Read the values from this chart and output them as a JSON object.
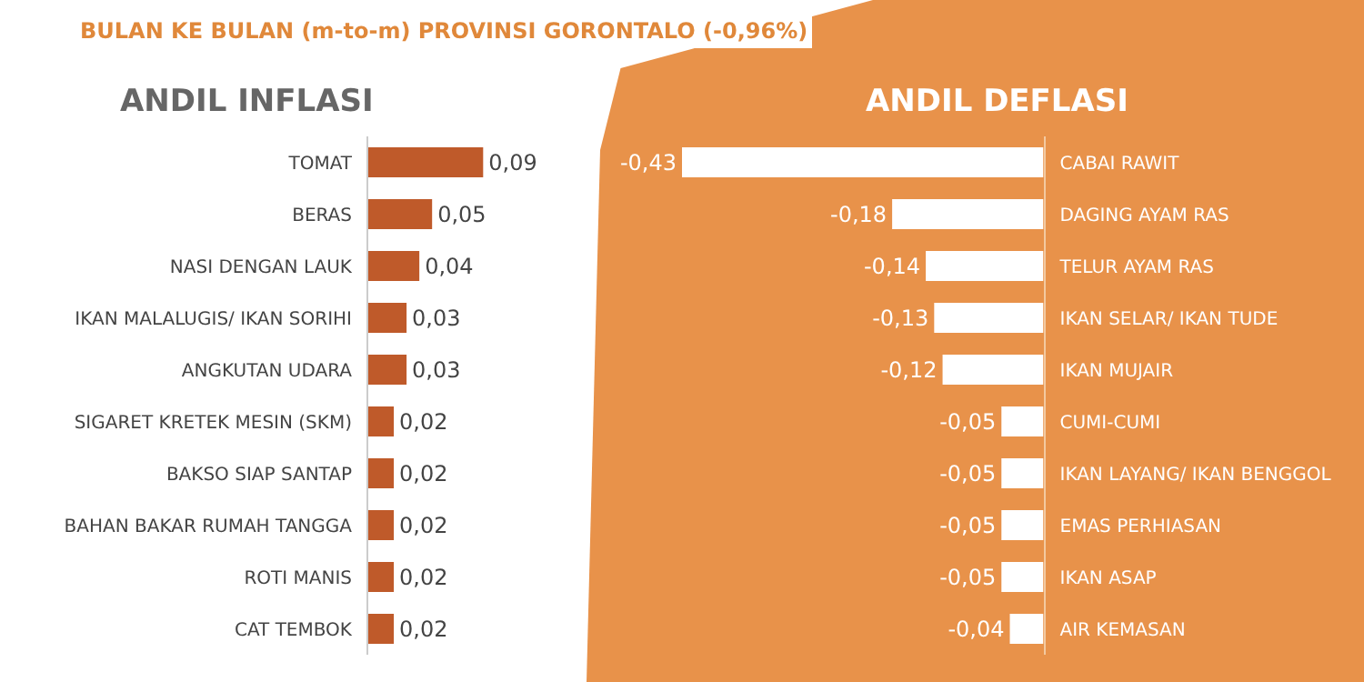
{
  "chart_data": [
    {
      "type": "bar",
      "orientation": "horizontal",
      "title": "ANDIL INFLASI",
      "annotations": [
        "BULAN KE BULAN (m-to-m) PROVINSI GORONTALO (-0,96%)"
      ],
      "color": "#bf5a2a",
      "categories": [
        "TOMAT",
        "BERAS",
        "NASI DENGAN LAUK",
        "IKAN MALALUGIS/ IKAN SORIHI",
        "ANGKUTAN UDARA",
        "SIGARET KRETEK MESIN (SKM)",
        "BAKSO SIAP SANTAP",
        "BAHAN BAKAR RUMAH TANGGA",
        "ROTI MANIS",
        "CAT TEMBOK"
      ],
      "values": [
        0.09,
        0.05,
        0.04,
        0.03,
        0.03,
        0.02,
        0.02,
        0.02,
        0.02,
        0.02
      ],
      "value_labels": [
        "0,09",
        "0,05",
        "0,04",
        "0,03",
        "0,03",
        "0,02",
        "0,02",
        "0,02",
        "0,02",
        "0,02"
      ]
    },
    {
      "type": "bar",
      "orientation": "horizontal",
      "title": "ANDIL DEFLASI",
      "color": "#ffffff",
      "categories": [
        "CABAI RAWIT",
        "DAGING AYAM RAS",
        "TELUR AYAM RAS",
        "IKAN SELAR/ IKAN TUDE",
        "IKAN MUJAIR",
        "CUMI-CUMI",
        "IKAN LAYANG/ IKAN BENGGOL",
        "EMAS PERHIASAN",
        "IKAN ASAP",
        "AIR KEMASAN"
      ],
      "values": [
        -0.43,
        -0.18,
        -0.14,
        -0.13,
        -0.12,
        -0.05,
        -0.05,
        -0.05,
        -0.05,
        -0.04
      ],
      "value_labels": [
        "-0,43",
        "-0,18",
        "-0,14",
        "-0,13",
        "-0,12",
        "-0,05",
        "-0,05",
        "-0,05",
        "-0,05",
        "-0,04"
      ]
    }
  ]
}
